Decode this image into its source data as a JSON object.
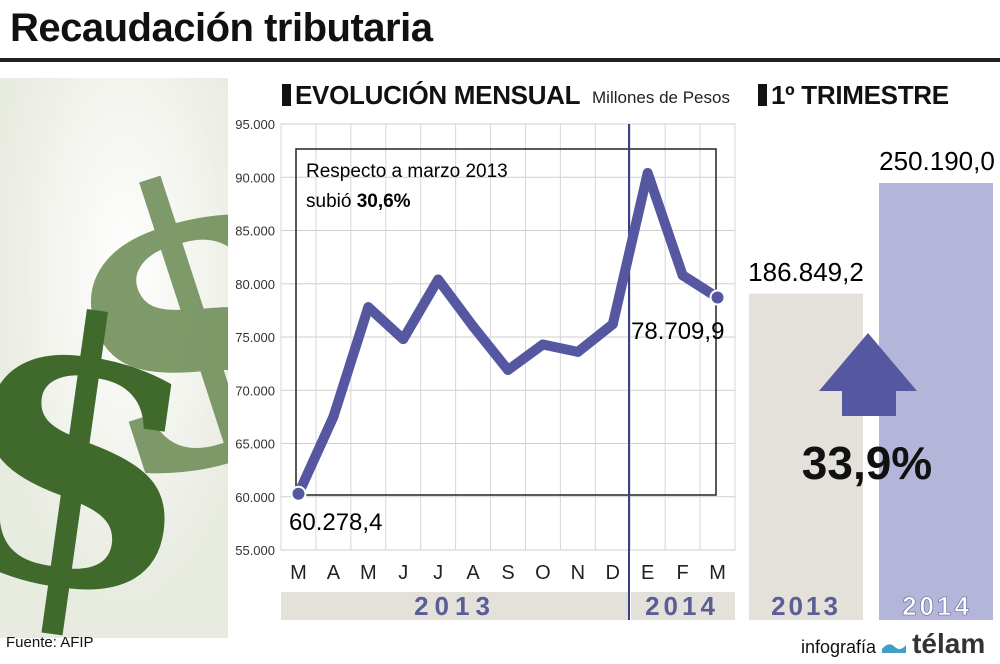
{
  "header": {
    "title": "Recaudación tributaria"
  },
  "monthly": {
    "heading": "EVOLUCIÓN MENSUAL",
    "unit": "Millones de Pesos",
    "annotation_line1": "Respecto a marzo 2013",
    "annotation_line2_prefix": "subió ",
    "annotation_line2_value": "30,6%",
    "label_first": "60.278,4",
    "label_last": "78.709,9",
    "year_2013": "2013",
    "year_2014": "2014"
  },
  "quarter": {
    "heading": "1º TRIMESTRE",
    "value_2013": "186.849,2",
    "value_2014": "250.190,0",
    "change": "33,9%",
    "year_2013": "2013",
    "year_2014": "2014"
  },
  "footer": {
    "source": "Fuente: AFIP",
    "credit_prefix": "infografía",
    "credit_brand": "télam"
  },
  "colors": {
    "line": "#5558a0",
    "bar_2013": "#e4e1da",
    "bar_2014": "#b3b6d8",
    "year_band": "#e4e1da",
    "year_text": "#5a5e96",
    "arrow": "#5558a0",
    "dollar": "#4f7a3a"
  },
  "chart_data": [
    {
      "type": "line",
      "title": "EVOLUCIÓN MENSUAL",
      "ylabel": "Millones de Pesos",
      "categories": [
        "M",
        "A",
        "M",
        "J",
        "J",
        "A",
        "S",
        "O",
        "N",
        "D",
        "E",
        "F",
        "M"
      ],
      "values": [
        60278.4,
        67500,
        77800,
        74800,
        80400,
        76000,
        71900,
        74300,
        73600,
        76200,
        90400,
        80800,
        78709.9
      ],
      "ylim": [
        55000,
        95000
      ],
      "yticks": [
        95000,
        90000,
        85000,
        80000,
        75000,
        70000,
        65000,
        60000,
        55000
      ],
      "ytick_labels": [
        "95.000",
        "90.000",
        "85.000",
        "80.000",
        "75.000",
        "70.000",
        "65.000",
        "60.000",
        "55.000"
      ],
      "groups": [
        {
          "name": "2013",
          "from": 0,
          "to": 9
        },
        {
          "name": "2014",
          "from": 10,
          "to": 12
        }
      ],
      "grid": true
    },
    {
      "type": "bar",
      "title": "1º TRIMESTRE",
      "categories": [
        "2013",
        "2014"
      ],
      "values": [
        186849.2,
        250190.0
      ],
      "value_labels": [
        "186.849,2",
        "250.190,0"
      ],
      "change_label": "33,9%"
    }
  ]
}
